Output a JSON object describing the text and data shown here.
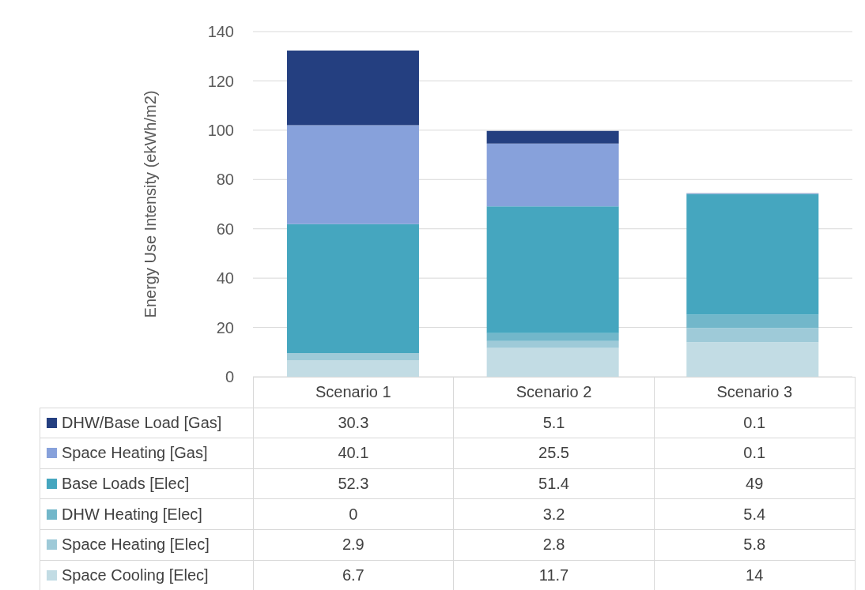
{
  "chart_data": {
    "type": "bar",
    "stacked": true,
    "ylabel": "Energy Use Intensity (ekWh/m2)",
    "categories": [
      "Scenario 1",
      "Scenario 2",
      "Scenario 3"
    ],
    "series": [
      {
        "name": "Space Cooling [Elec]",
        "color": "#c2dce4",
        "values": [
          6.7,
          11.7,
          14
        ]
      },
      {
        "name": "Space Heating [Elec]",
        "color": "#9ecad8",
        "values": [
          2.9,
          2.8,
          5.8
        ]
      },
      {
        "name": "DHW Heating [Elec]",
        "color": "#72b7ca",
        "values": [
          0,
          3.2,
          5.4
        ]
      },
      {
        "name": "Base Loads [Elec]",
        "color": "#45a6bf",
        "values": [
          52.3,
          51.4,
          49
        ]
      },
      {
        "name": "Space Heating [Gas]",
        "color": "#87a1db",
        "values": [
          40.1,
          25.5,
          0.1
        ]
      },
      {
        "name": "DHW/Base Load [Gas]",
        "color": "#243f80",
        "values": [
          30.3,
          5.1,
          0.1
        ]
      }
    ],
    "ylim": [
      0,
      140
    ],
    "yticks": [
      0,
      20,
      40,
      60,
      80,
      100,
      120,
      140
    ],
    "grid": "y",
    "legend": "bottom",
    "data_labels": true
  }
}
